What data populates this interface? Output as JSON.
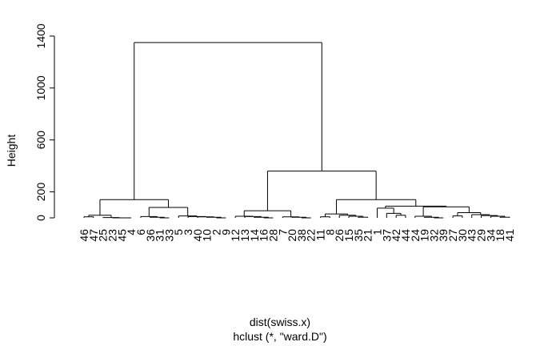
{
  "chart_data": {
    "type": "dendrogram",
    "title": "",
    "ylabel": "Height",
    "xlabel": "dist(swiss.x)",
    "sublabel": "hclust (*, \"ward.D\")",
    "ylim": [
      0,
      1400
    ],
    "yticks": [
      0,
      200,
      600,
      1000,
      1400
    ],
    "leaves": [
      "46",
      "47",
      "25",
      "23",
      "45",
      "4",
      "6",
      "36",
      "31",
      "33",
      "5",
      "3",
      "40",
      "10",
      "2",
      "9",
      "12",
      "13",
      "14",
      "16",
      "28",
      "7",
      "20",
      "38",
      "22",
      "11",
      "8",
      "26",
      "15",
      "35",
      "21",
      "1",
      "37",
      "42",
      "44",
      "24",
      "19",
      "32",
      "39",
      "27",
      "30",
      "43",
      "29",
      "34",
      "18",
      "41"
    ],
    "merges": [
      [
        -1,
        -2,
        0
      ],
      [
        -3,
        -4,
        0
      ],
      [
        -5,
        -6,
        0
      ],
      [
        1,
        2,
        20
      ],
      [
        4,
        3,
        16
      ],
      [
        -7,
        -8,
        12
      ],
      [
        -9,
        -10,
        0
      ],
      [
        6,
        7,
        8
      ],
      [
        -11,
        -12,
        15
      ],
      [
        -13,
        -14,
        0
      ],
      [
        -15,
        -16,
        0
      ],
      [
        10,
        11,
        0
      ],
      [
        9,
        12,
        10
      ],
      [
        8,
        13,
        90
      ],
      [
        5,
        14,
        140
      ],
      [
        -17,
        -18,
        10
      ],
      [
        -19,
        -20,
        0
      ],
      [
        16,
        17,
        10
      ],
      [
        -21,
        -22,
        0
      ],
      [
        -23,
        -24,
        0
      ],
      [
        19,
        20,
        0
      ],
      [
        -25,
        -26,
        0
      ],
      [
        21,
        22,
        0
      ],
      [
        18,
        23,
        0
      ],
      [
        24,
        -27,
        8
      ],
      [
        -28,
        -29,
        0
      ],
      [
        -30,
        -31,
        0
      ],
      [
        26,
        27,
        0
      ],
      [
        28,
        -32,
        0
      ],
      [
        25,
        29,
        55
      ],
      [
        -33,
        -34,
        25
      ],
      [
        -35,
        -36,
        0
      ],
      [
        31,
        32,
        5
      ],
      [
        33,
        -37,
        30
      ],
      [
        -38,
        -39,
        0
      ],
      [
        35,
        -40,
        0
      ],
      [
        -41,
        -42,
        0
      ],
      [
        37,
        -43,
        0
      ],
      [
        38,
        -44,
        0
      ],
      [
        39,
        -45,
        0
      ],
      [
        40,
        -46,
        0
      ],
      [
        36,
        41,
        10
      ],
      [
        34,
        42,
        0
      ],
      [
        43,
        -47,
        0
      ],
      [
        44,
        -48,
        10
      ],
      [
        -49,
        -50,
        0
      ],
      [
        45,
        46,
        20
      ],
      [
        -51,
        -52,
        0
      ],
      [
        -53,
        -54,
        0
      ],
      [
        48,
        49,
        0
      ],
      [
        -55,
        -56,
        0
      ],
      [
        51,
        52,
        0
      ],
      [
        47,
        53,
        35
      ],
      [
        -57,
        -58,
        8
      ],
      [
        -59,
        -60,
        0
      ],
      [
        54,
        55,
        8
      ],
      [
        50,
        56,
        30
      ],
      [
        -61,
        -62,
        0
      ],
      [
        -63,
        -64,
        0
      ],
      [
        58,
        59,
        5
      ],
      [
        -65,
        -66,
        0
      ],
      [
        60,
        61,
        0
      ],
      [
        62,
        -67,
        0
      ],
      [
        57,
        63,
        55
      ],
      [
        -68,
        -69,
        0
      ],
      [
        -70,
        -71,
        0
      ],
      [
        65,
        66,
        5
      ],
      [
        64,
        67,
        0
      ],
      [
        -72,
        -73,
        0
      ],
      [
        -74,
        -75,
        0
      ],
      [
        69,
        70,
        0
      ],
      [
        68,
        71,
        0
      ],
      [
        -76,
        -77,
        0
      ],
      [
        -78,
        -79,
        0
      ],
      [
        73,
        74,
        0
      ],
      [
        75,
        -80,
        15
      ],
      [
        72,
        76,
        20
      ],
      [
        -81,
        -82,
        0
      ],
      [
        -83,
        -84,
        0
      ],
      [
        -85,
        -86,
        0
      ],
      [
        79,
        80,
        0
      ],
      [
        78,
        81,
        0
      ],
      [
        -87,
        -88,
        0
      ],
      [
        -89,
        -90,
        0
      ],
      [
        83,
        84,
        0
      ],
      [
        82,
        85,
        0
      ],
      [
        86,
        -91,
        0
      ],
      [
        87,
        -92,
        0
      ],
      [
        77,
        88,
        30
      ],
      [
        -93,
        -94,
        0
      ],
      [
        89,
        90,
        0
      ],
      [
        91,
        -95,
        0
      ],
      [
        92,
        -96,
        0
      ],
      [
        93,
        -97,
        0
      ],
      [
        94,
        -98,
        0
      ],
      [
        95,
        -99,
        0
      ],
      [
        96,
        -100,
        0
      ],
      [
        97,
        -101,
        0
      ],
      [
        98,
        -102,
        0
      ],
      [
        99,
        -103,
        0
      ]
    ],
    "structure": {
      "leaf_groups": [
        {
          "id": "g1",
          "leaves": [
            "46",
            "47"
          ],
          "h": 0
        },
        {
          "id": "g2",
          "leaves": [
            "25",
            "23"
          ],
          "h": 0
        },
        {
          "id": "g3",
          "leaves": [
            "45",
            "4"
          ],
          "h": 0
        },
        {
          "id": "g4",
          "leaves": [
            "6",
            "36"
          ],
          "h": 0
        },
        {
          "id": "g5",
          "leaves": [
            "31",
            "33"
          ],
          "h": 0
        },
        {
          "id": "g6",
          "leaves": [
            "5",
            "3"
          ],
          "h": 0
        },
        {
          "id": "g7",
          "leaves": [
            "40",
            "10"
          ],
          "h": 0
        },
        {
          "id": "g8",
          "leaves": [
            "2",
            "9"
          ],
          "h": 0
        }
      ]
    },
    "tree": {
      "h": 1350,
      "children": [
        {
          "h": 140,
          "children": [
            {
              "h": 20,
              "children": [
                {
                  "h": 8,
                  "children": [
                    {
                      "leaf": "46"
                    },
                    {
                      "leaf": "47"
                    }
                  ]
                },
                {
                  "h": 2,
                  "children": [
                    {
                      "leaf": "25"
                    },
                    {
                      "h": 0,
                      "children": [
                        {
                          "leaf": "23"
                        },
                        {
                          "h": 0,
                          "children": [
                            {
                              "leaf": "45"
                            },
                            {
                              "leaf": "4"
                            }
                          ]
                        }
                      ]
                    }
                  ]
                }
              ]
            },
            {
              "h": 80,
              "children": [
                {
                  "h": 10,
                  "children": [
                    {
                      "leaf": "6"
                    },
                    {
                      "h": 5,
                      "children": [
                        {
                          "leaf": "36"
                        },
                        {
                          "h": 0,
                          "children": [
                            {
                              "leaf": "31"
                            },
                            {
                              "leaf": "33"
                            }
                          ]
                        }
                      ]
                    }
                  ]
                },
                {
                  "h": 15,
                  "children": [
                    {
                      "leaf": "5"
                    },
                    {
                      "h": 10,
                      "children": [
                        {
                          "leaf": "3"
                        },
                        {
                          "h": 8,
                          "children": [
                            {
                              "leaf": "40"
                            },
                            {
                              "h": 5,
                              "children": [
                                {
                                  "leaf": "10"
                                },
                                {
                                  "h": 0,
                                  "children": [
                                    {
                                      "leaf": "2"
                                    },
                                    {
                                      "leaf": "9"
                                    }
                                  ]
                                }
                              ]
                            }
                          ]
                        }
                      ]
                    }
                  ]
                }
              ]
            }
          ]
        },
        {
          "h": 360,
          "children": [
            {
              "h": 55,
              "children": [
                {
                  "h": 12,
                  "children": [
                    {
                      "leaf": "12"
                    },
                    {
                      "h": 10,
                      "children": [
                        {
                          "leaf": "13"
                        },
                        {
                          "h": 5,
                          "children": [
                            {
                              "leaf": "14"
                            },
                            {
                              "h": 0,
                              "children": [
                                {
                                  "leaf": "16"
                                },
                                {
                                  "leaf": "28"
                                }
                              ]
                            }
                          ]
                        }
                      ]
                    }
                  ]
                },
                {
                  "h": 8,
                  "children": [
                    {
                      "leaf": "7"
                    },
                    {
                      "h": 5,
                      "children": [
                        {
                          "leaf": "20"
                        },
                        {
                          "h": 0,
                          "children": [
                            {
                              "leaf": "38"
                            },
                            {
                              "leaf": "22"
                            }
                          ]
                        }
                      ]
                    }
                  ]
                }
              ]
            },
            {
              "h": 140,
              "children": [
                {
                  "h": 30,
                  "children": [
                    {
                      "h": 8,
                      "children": [
                        {
                          "leaf": "11"
                        },
                        {
                          "leaf": "8"
                        }
                      ]
                    },
                    {
                      "h": 20,
                      "children": [
                        {
                          "leaf": "26"
                        },
                        {
                          "h": 12,
                          "children": [
                            {
                              "leaf": "15"
                            },
                            {
                              "h": 5,
                              "children": [
                                {
                                  "leaf": "35"
                                },
                                {
                                  "leaf": "21"
                                }
                              ]
                            }
                          ]
                        }
                      ]
                    }
                  ]
                },
                {
                  "h": 90,
                  "children": [
                    {
                      "h": 75,
                      "children": [
                        {
                          "leaf": "1"
                        },
                        {
                          "h": 35,
                          "children": [
                            {
                              "leaf": "37"
                            },
                            {
                              "h": 20,
                              "children": [
                                {
                                  "leaf": "42"
                                },
                                {
                                  "leaf": "44"
                                }
                              ]
                            }
                          ]
                        }
                      ]
                    },
                    {
                      "h": 85,
                      "children": [
                        {
                          "h": 12,
                          "children": [
                            {
                              "leaf": "24"
                            },
                            {
                              "h": 5,
                              "children": [
                                {
                                  "leaf": "19"
                                },
                                {
                                  "h": 0,
                                  "children": [
                                    {
                                      "leaf": "32"
                                    },
                                    {
                                      "leaf": "39"
                                    }
                                  ]
                                }
                              ]
                            }
                          ]
                        },
                        {
                          "h": 40,
                          "children": [
                            {
                              "h": 15,
                              "children": [
                                {
                                  "leaf": "27"
                                },
                                {
                                  "leaf": "30"
                                }
                              ]
                            },
                            {
                              "h": 25,
                              "children": [
                                {
                                  "leaf": "43"
                                },
                                {
                                  "h": 18,
                                  "children": [
                                    {
                                      "leaf": "29"
                                    },
                                    {
                                      "h": 12,
                                      "children": [
                                        {
                                          "leaf": "34"
                                        },
                                        {
                                          "h": 5,
                                          "children": [
                                            {
                                              "leaf": "18"
                                            },
                                            {
                                              "leaf": "41"
                                            }
                                          ]
                                        }
                                      ]
                                    }
                                  ]
                                }
                              ]
                            }
                          ]
                        }
                      ]
                    }
                  ]
                }
              ]
            }
          ]
        }
      ]
    }
  }
}
